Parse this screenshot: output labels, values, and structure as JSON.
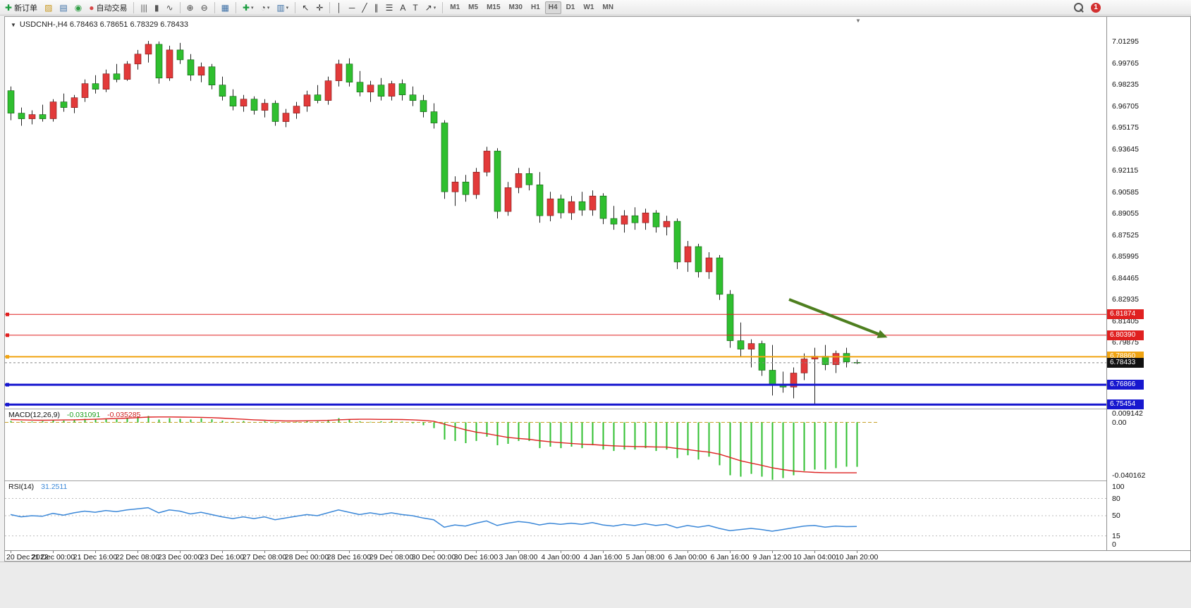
{
  "toolbar": {
    "badge": "1",
    "items": [
      {
        "name": "new-order-button",
        "glyph": "✚",
        "color": "#1a9c3e",
        "label": "新订单"
      },
      {
        "name": "chart-profiles-button",
        "glyph": "▨",
        "color": "#c9971c"
      },
      {
        "name": "print-button",
        "glyph": "▤",
        "color": "#3a6ea5"
      },
      {
        "name": "sound-button",
        "glyph": "◉",
        "color": "#2f9e44"
      },
      {
        "name": "auto-trading-button",
        "glyph": "●",
        "color": "#d64545",
        "label": "自动交易"
      },
      {
        "type": "sep"
      },
      {
        "name": "bar-chart-button",
        "glyph": "|||",
        "color": "#555555"
      },
      {
        "name": "candlestick-chart-button",
        "glyph": "▮",
        "color": "#555555"
      },
      {
        "name": "line-chart-button",
        "glyph": "∿",
        "color": "#555555"
      },
      {
        "type": "sep"
      },
      {
        "name": "zoom-in-button",
        "glyph": "⊕",
        "color": "#444444"
      },
      {
        "name": "zoom-out-button",
        "glyph": "⊖",
        "color": "#444444"
      },
      {
        "type": "sep"
      },
      {
        "name": "tile-windows-button",
        "glyph": "▦",
        "color": "#3a6ea5"
      },
      {
        "type": "sep"
      },
      {
        "name": "new-chart-button",
        "glyph": "✚",
        "color": "#1a9c3e",
        "caret": true
      },
      {
        "name": "period-button",
        "glyph": "◔",
        "color": "#444444",
        "caret": true
      },
      {
        "name": "templates-button",
        "glyph": "▥",
        "color": "#3a6ea5",
        "caret": true
      },
      {
        "type": "sep"
      },
      {
        "name": "cursor-button",
        "glyph": "↖",
        "color": "#333333"
      },
      {
        "name": "crosshair-button",
        "glyph": "✛",
        "color": "#333333"
      },
      {
        "type": "sep"
      },
      {
        "name": "vertical-line-button",
        "glyph": "│",
        "color": "#333333"
      },
      {
        "name": "horizontal-line-button",
        "glyph": "─",
        "color": "#333333"
      },
      {
        "name": "trendline-button",
        "glyph": "╱",
        "color": "#333333"
      },
      {
        "name": "equidistant-channel-button",
        "glyph": "∥",
        "color": "#333333"
      },
      {
        "name": "fibonacci-button",
        "glyph": "☰",
        "color": "#333333"
      },
      {
        "name": "text-button",
        "glyph": "A",
        "color": "#333333"
      },
      {
        "name": "text-label-button",
        "glyph": "T",
        "color": "#333333"
      },
      {
        "name": "arrows-button",
        "glyph": "↗",
        "color": "#333333",
        "caret": true
      },
      {
        "type": "sep"
      },
      {
        "name": "tf-m1-button",
        "label": "M1",
        "kind": "tf"
      },
      {
        "name": "tf-m5-button",
        "label": "M5",
        "kind": "tf"
      },
      {
        "name": "tf-m15-button",
        "label": "M15",
        "kind": "tf"
      },
      {
        "name": "tf-m30-button",
        "label": "M30",
        "kind": "tf"
      },
      {
        "name": "tf-h1-button",
        "label": "H1",
        "kind": "tf"
      },
      {
        "name": "tf-h4-button",
        "label": "H4",
        "kind": "tf",
        "active": true
      },
      {
        "name": "tf-d1-button",
        "label": "D1",
        "kind": "tf"
      },
      {
        "name": "tf-w1-button",
        "label": "W1",
        "kind": "tf"
      },
      {
        "name": "tf-mn-button",
        "label": "MN",
        "kind": "tf"
      }
    ]
  },
  "chart": {
    "expander_glyph": "▼",
    "title": "USDCNH-,H4  6.78463 6.78651 6.78329 6.78433",
    "shift_marker_glyph": "▼"
  },
  "price_axis": {
    "labels": [
      "7.01295",
      "6.99765",
      "6.98235",
      "6.96705",
      "6.95175",
      "6.93645",
      "6.92115",
      "6.90585",
      "6.89055",
      "6.87525",
      "6.85995",
      "6.84465",
      "6.82935",
      "6.81405",
      "6.79875"
    ],
    "values": [
      7.01295,
      6.99765,
      6.98235,
      6.96705,
      6.95175,
      6.93645,
      6.92115,
      6.90585,
      6.89055,
      6.87525,
      6.85995,
      6.84465,
      6.82935,
      6.81405,
      6.79875
    ]
  },
  "hlines": [
    {
      "value": 6.81874,
      "label": "6.81874",
      "color": "#e02020",
      "width": 1,
      "tag_bg": "#e02020"
    },
    {
      "value": 6.8039,
      "label": "6.80390",
      "color": "#e02020",
      "width": 1,
      "tag_bg": "#e02020"
    },
    {
      "value": 6.7886,
      "label": "6.78860",
      "color": "#f0a413",
      "width": 2,
      "tag_bg": "#f0a413"
    },
    {
      "value": 6.76866,
      "label": "6.76866",
      "color": "#1717cf",
      "width": 3,
      "tag_bg": "#1717cf"
    },
    {
      "value": 6.75454,
      "label": "6.75454",
      "color": "#1717cf",
      "width": 3,
      "tag_bg": "#1717cf"
    }
  ],
  "current_price": {
    "value": 6.78433,
    "label": "6.78433",
    "tag_bg": "#111111"
  },
  "indicators": {
    "macd": {
      "name": "MACD(12,26,9)",
      "value_main": "-0.031091",
      "value_signal": "-0.035285",
      "axis_ticks": [
        "0.009142",
        "0.00",
        "-0.040162"
      ],
      "axis_values": [
        0.009142,
        0,
        -0.040162
      ]
    },
    "rsi": {
      "name": "RSI(14)",
      "value": "31.2511",
      "axis_ticks": [
        "100",
        "80",
        "50",
        "15",
        "0"
      ],
      "axis_values": [
        100,
        80,
        50,
        15,
        0
      ],
      "levels": [
        80,
        50,
        15
      ]
    }
  },
  "time_axis": {
    "labels": [
      "20 Dec 2022",
      "21 Dec 00:00",
      "21 Dec 16:00",
      "22 Dec 08:00",
      "23 Dec 00:00",
      "23 Dec 16:00",
      "27 Dec 08:00",
      "28 Dec 00:00",
      "28 Dec 16:00",
      "29 Dec 08:00",
      "30 Dec 00:00",
      "30 Dec 16:00",
      "3 Jan 08:00",
      "4 Jan 00:00",
      "4 Jan 16:00",
      "5 Jan 08:00",
      "6 Jan 00:00",
      "6 Jan 16:00",
      "9 Jan 12:00",
      "10 Jan 04:00",
      "10 Jan 20:00"
    ]
  },
  "chart_data": {
    "type": "candlestick",
    "symbol": "USDCNH-",
    "timeframe": "H4",
    "visible_price_range": [
      6.752,
      7.0305
    ],
    "up_color": "#e23a3a",
    "down_color": "#2fbf2f",
    "wick_color": "#222222",
    "macd_color": "#2fbf2f",
    "macd_signal_color": "#dd2222",
    "rsi_color": "#3a87d8",
    "ohlc": [
      [
        6.978,
        6.981,
        6.957,
        6.962
      ],
      [
        6.962,
        6.966,
        6.953,
        6.958
      ],
      [
        6.958,
        6.964,
        6.954,
        6.961
      ],
      [
        6.961,
        6.968,
        6.956,
        6.958
      ],
      [
        6.958,
        6.972,
        6.956,
        6.97
      ],
      [
        6.97,
        6.976,
        6.963,
        6.966
      ],
      [
        6.966,
        6.975,
        6.962,
        6.973
      ],
      [
        6.973,
        6.986,
        6.97,
        6.983
      ],
      [
        6.983,
        6.989,
        6.976,
        6.979
      ],
      [
        6.979,
        6.993,
        6.977,
        6.99
      ],
      [
        6.99,
        6.997,
        6.984,
        6.986
      ],
      [
        6.986,
        6.999,
        6.985,
        6.997
      ],
      [
        6.997,
        7.007,
        6.993,
        7.004
      ],
      [
        7.004,
        7.0134,
        6.998,
        7.011
      ],
      [
        7.011,
        7.013,
        6.983,
        6.987
      ],
      [
        6.987,
        7.01,
        6.985,
        7.007
      ],
      [
        7.007,
        7.012,
        6.997,
        7.0
      ],
      [
        7.0,
        7.004,
        6.985,
        6.989
      ],
      [
        6.989,
        6.998,
        6.984,
        6.995
      ],
      [
        6.995,
        6.997,
        6.979,
        6.982
      ],
      [
        6.982,
        6.988,
        6.971,
        6.974
      ],
      [
        6.974,
        6.979,
        6.964,
        6.967
      ],
      [
        6.967,
        6.975,
        6.963,
        6.972
      ],
      [
        6.972,
        6.974,
        6.961,
        6.964
      ],
      [
        6.964,
        6.972,
        6.959,
        6.969
      ],
      [
        6.969,
        6.971,
        6.953,
        6.956
      ],
      [
        6.956,
        6.965,
        6.952,
        6.962
      ],
      [
        6.962,
        6.97,
        6.958,
        6.967
      ],
      [
        6.967,
        6.978,
        6.963,
        6.975
      ],
      [
        6.975,
        6.982,
        6.969,
        6.971
      ],
      [
        6.971,
        6.988,
        6.968,
        6.985
      ],
      [
        6.985,
        7.0,
        6.981,
        6.997
      ],
      [
        6.997,
        7.001,
        6.981,
        6.984
      ],
      [
        6.984,
        6.992,
        6.974,
        6.977
      ],
      [
        6.977,
        6.985,
        6.97,
        6.982
      ],
      [
        6.982,
        6.987,
        6.971,
        6.974
      ],
      [
        6.974,
        6.985,
        6.971,
        6.983
      ],
      [
        6.983,
        6.986,
        6.971,
        6.975
      ],
      [
        6.975,
        6.981,
        6.967,
        6.971
      ],
      [
        6.971,
        6.975,
        6.959,
        6.963
      ],
      [
        6.963,
        6.969,
        6.951,
        6.955
      ],
      [
        6.955,
        6.957,
        6.901,
        6.906
      ],
      [
        6.906,
        6.917,
        6.896,
        6.913
      ],
      [
        6.913,
        6.918,
        6.899,
        6.904
      ],
      [
        6.904,
        6.923,
        6.901,
        6.92
      ],
      [
        6.92,
        6.938,
        6.917,
        6.935
      ],
      [
        6.935,
        6.937,
        6.887,
        6.892
      ],
      [
        6.892,
        6.913,
        6.889,
        6.909
      ],
      [
        6.909,
        6.923,
        6.905,
        6.919
      ],
      [
        6.919,
        6.923,
        6.907,
        6.911
      ],
      [
        6.911,
        6.92,
        6.884,
        6.889
      ],
      [
        6.889,
        6.906,
        6.885,
        6.901
      ],
      [
        6.901,
        6.904,
        6.887,
        6.891
      ],
      [
        6.891,
        6.903,
        6.886,
        6.899
      ],
      [
        6.899,
        6.906,
        6.889,
        6.893
      ],
      [
        6.893,
        6.907,
        6.889,
        6.903
      ],
      [
        6.903,
        6.905,
        6.883,
        6.887
      ],
      [
        6.887,
        6.896,
        6.879,
        6.883
      ],
      [
        6.883,
        6.893,
        6.877,
        6.889
      ],
      [
        6.889,
        6.895,
        6.879,
        6.884
      ],
      [
        6.884,
        6.894,
        6.879,
        6.891
      ],
      [
        6.891,
        6.893,
        6.877,
        6.881
      ],
      [
        6.881,
        6.889,
        6.875,
        6.885
      ],
      [
        6.885,
        6.887,
        6.851,
        6.856
      ],
      [
        6.856,
        6.871,
        6.849,
        6.867
      ],
      [
        6.867,
        6.869,
        6.845,
        6.849
      ],
      [
        6.849,
        6.863,
        6.844,
        6.859
      ],
      [
        6.859,
        6.861,
        6.829,
        6.833
      ],
      [
        6.833,
        6.836,
        6.795,
        6.8
      ],
      [
        6.8,
        6.813,
        6.789,
        6.794
      ],
      [
        6.794,
        6.801,
        6.781,
        6.798
      ],
      [
        6.798,
        6.8,
        6.775,
        6.779
      ],
      [
        6.779,
        6.797,
        6.761,
        6.769
      ],
      [
        6.769,
        6.778,
        6.763,
        6.767
      ],
      [
        6.767,
        6.781,
        6.759,
        6.777
      ],
      [
        6.777,
        6.791,
        6.772,
        6.787
      ],
      [
        6.787,
        6.795,
        6.755,
        6.789
      ],
      [
        6.789,
        6.797,
        6.779,
        6.783
      ],
      [
        6.783,
        6.793,
        6.777,
        6.791
      ],
      [
        6.791,
        6.795,
        6.781,
        6.785
      ],
      [
        6.78463,
        6.78651,
        6.78329,
        6.78433
      ]
    ],
    "macd_hist": [
      0.001,
      0.0008,
      0.0006,
      0.0009,
      0.0015,
      0.0012,
      0.0018,
      0.0025,
      0.002,
      0.0028,
      0.0022,
      0.003,
      0.0038,
      0.0045,
      0.002,
      0.003,
      0.0025,
      0.002,
      0.0028,
      0.0022,
      0.0012,
      0.0006,
      0.001,
      0.0002,
      0.0008,
      -0.0006,
      -0.0002,
      0.0004,
      0.001,
      0.0006,
      0.0018,
      0.003,
      0.0022,
      0.0008,
      0.0004,
      0.0008,
      0.0012,
      0.0004,
      -0.0006,
      -0.002,
      -0.004,
      -0.012,
      -0.013,
      -0.0145,
      -0.013,
      -0.01,
      -0.016,
      -0.015,
      -0.013,
      -0.013,
      -0.018,
      -0.017,
      -0.018,
      -0.017,
      -0.018,
      -0.016,
      -0.019,
      -0.02,
      -0.019,
      -0.019,
      -0.018,
      -0.02,
      -0.019,
      -0.025,
      -0.023,
      -0.026,
      -0.024,
      -0.03,
      -0.037,
      -0.038,
      -0.036,
      -0.038,
      -0.0402,
      -0.039,
      -0.037,
      -0.034,
      -0.033,
      -0.033,
      -0.032,
      -0.031,
      -0.031091
    ],
    "macd_signal": [
      0.002,
      0.0018,
      0.0016,
      0.0015,
      0.0016,
      0.0017,
      0.0018,
      0.002,
      0.0022,
      0.0025,
      0.0027,
      0.003,
      0.0033,
      0.0037,
      0.0038,
      0.0038,
      0.0037,
      0.0036,
      0.0035,
      0.0033,
      0.003,
      0.0026,
      0.0022,
      0.0018,
      0.0015,
      0.0012,
      0.001,
      0.001,
      0.0011,
      0.0012,
      0.0014,
      0.0018,
      0.0021,
      0.0022,
      0.0022,
      0.0021,
      0.0021,
      0.002,
      0.0018,
      0.0014,
      0.0008,
      -0.0012,
      -0.0032,
      -0.0052,
      -0.0068,
      -0.0078,
      -0.0092,
      -0.0105,
      -0.0112,
      -0.0118,
      -0.0128,
      -0.0136,
      -0.0142,
      -0.0147,
      -0.0152,
      -0.0155,
      -0.016,
      -0.0164,
      -0.0167,
      -0.0169,
      -0.017,
      -0.0172,
      -0.0173,
      -0.0182,
      -0.019,
      -0.02,
      -0.0208,
      -0.0222,
      -0.0245,
      -0.0268,
      -0.0285,
      -0.03,
      -0.0318,
      -0.033,
      -0.034,
      -0.0346,
      -0.035,
      -0.0352,
      -0.0353,
      -0.0353,
      -0.035285
    ],
    "rsi": [
      52,
      48,
      50,
      49,
      54,
      51,
      55,
      58,
      56,
      59,
      57,
      60,
      62,
      64,
      55,
      60,
      58,
      53,
      56,
      52,
      48,
      45,
      48,
      45,
      48,
      43,
      46,
      49,
      52,
      50,
      55,
      60,
      56,
      52,
      55,
      52,
      55,
      52,
      50,
      46,
      43,
      30,
      34,
      32,
      37,
      41,
      33,
      37,
      40,
      38,
      34,
      37,
      35,
      37,
      35,
      38,
      34,
      32,
      35,
      33,
      36,
      33,
      35,
      29,
      33,
      30,
      33,
      28,
      24,
      26,
      28,
      26,
      23,
      26,
      29,
      32,
      33,
      30,
      32,
      31,
      31.2511
    ],
    "arrow": {
      "x1_bar": 73.6,
      "y1_price": 6.8294,
      "x2_bar": 82.9,
      "y2_price": 6.8023,
      "color": "#4e7f1f"
    }
  }
}
